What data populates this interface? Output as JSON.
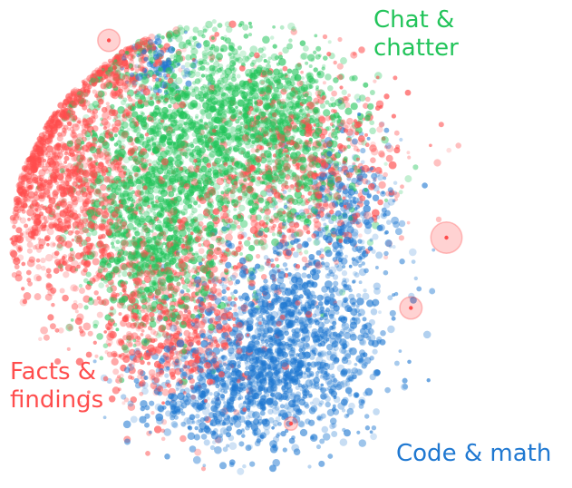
{
  "chart_data": {
    "type": "scatter",
    "title": "",
    "xlabel": "",
    "ylabel": "",
    "grid": false,
    "axes_visible": false,
    "background": "#ffffff",
    "series": [
      {
        "name": "Chat & chatter",
        "color": "#22c45a",
        "clusters": [
          {
            "cx": -0.32,
            "cy": 0.38,
            "sx": 0.22,
            "sy": 0.28,
            "n": 1400
          },
          {
            "cx": 0.05,
            "cy": 0.62,
            "sx": 0.2,
            "sy": 0.14,
            "n": 700
          },
          {
            "cx": -0.45,
            "cy": -0.05,
            "sx": 0.16,
            "sy": 0.18,
            "n": 500
          },
          {
            "cx": 0.22,
            "cy": 0.35,
            "sx": 0.16,
            "sy": 0.16,
            "n": 350
          }
        ]
      },
      {
        "name": "Facts & findings",
        "color": "#ff4d4d",
        "clusters": [
          {
            "cx": -0.82,
            "cy": 0.3,
            "sx": 0.17,
            "sy": 0.25,
            "n": 1100
          },
          {
            "cx": -0.35,
            "cy": -0.35,
            "sx": 0.18,
            "sy": 0.2,
            "n": 650
          },
          {
            "cx": 0.28,
            "cy": 0.38,
            "sx": 0.22,
            "sy": 0.22,
            "n": 500
          },
          {
            "cx": -0.55,
            "cy": 0.78,
            "sx": 0.12,
            "sy": 0.12,
            "n": 220
          },
          {
            "cx": -0.15,
            "cy": 0.1,
            "sx": 0.25,
            "sy": 0.25,
            "n": 300
          }
        ]
      },
      {
        "name": "Code & math",
        "color": "#1f78d1",
        "clusters": [
          {
            "cx": 0.18,
            "cy": -0.42,
            "sx": 0.22,
            "sy": 0.2,
            "n": 1300
          },
          {
            "cx": -0.1,
            "cy": -0.65,
            "sx": 0.2,
            "sy": 0.12,
            "n": 500
          },
          {
            "cx": 0.45,
            "cy": 0.15,
            "sx": 0.12,
            "sy": 0.18,
            "n": 300
          },
          {
            "cx": -0.4,
            "cy": 0.8,
            "sx": 0.08,
            "sy": 0.07,
            "n": 90
          }
        ]
      }
    ],
    "highlights": [
      {
        "series": 1,
        "x": 0.9,
        "y": 0.04,
        "r": 0.07
      },
      {
        "series": 1,
        "x": -0.62,
        "y": 0.91,
        "r": 0.05
      },
      {
        "series": 1,
        "x": 0.74,
        "y": -0.27,
        "r": 0.05
      },
      {
        "series": 1,
        "x": 0.2,
        "y": -0.78,
        "r": 0.03
      }
    ],
    "annotations": [
      {
        "text": "Chat &\nchatter",
        "series": 1
      },
      {
        "text": "Facts &\nfindings",
        "series": 2
      },
      {
        "text": "Code & math",
        "series": 3
      }
    ]
  },
  "labels": {
    "chat": [
      "Chat &",
      "chatter"
    ],
    "facts": [
      "Facts &",
      "findings"
    ],
    "code": [
      "Code & math"
    ]
  }
}
